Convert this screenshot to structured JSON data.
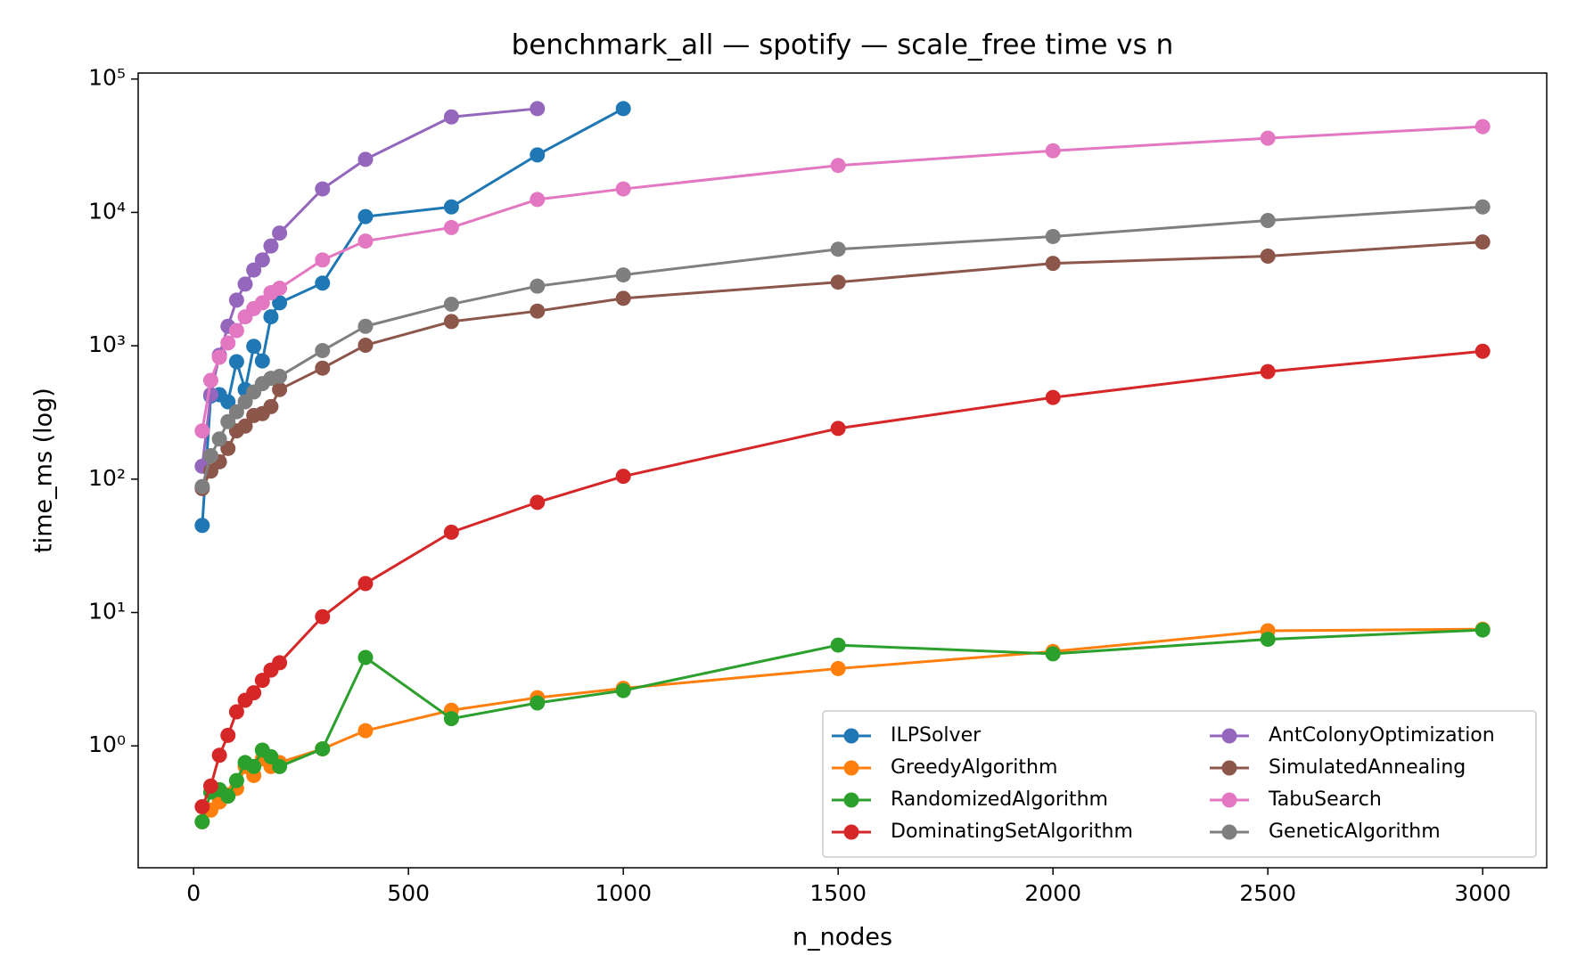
{
  "chart_data": {
    "type": "line",
    "title": "benchmark_all — spotify — scale_free time vs n",
    "x_label": "n_nodes",
    "y_label": "time_ms (log)",
    "log_y": true,
    "legend": "lower right",
    "x": [
      20,
      40,
      60,
      80,
      100,
      120,
      140,
      160,
      180,
      200,
      300,
      400,
      600,
      800,
      1000,
      1500,
      2000,
      2500,
      3000
    ],
    "xlim": [
      -129,
      3149
    ],
    "xticks": [
      0,
      500,
      1000,
      1500,
      2000,
      2500,
      3000
    ],
    "ylim": [
      0.122,
      110900
    ],
    "yticks": [
      {
        "value": 1,
        "label": "10⁰"
      },
      {
        "value": 10,
        "label": "10¹"
      },
      {
        "value": 100,
        "label": "10²"
      },
      {
        "value": 1000,
        "label": "10³"
      },
      {
        "value": 10000,
        "label": "10⁴"
      },
      {
        "value": 100000,
        "label": "10⁵"
      }
    ],
    "series": [
      {
        "name": "ILPSolver",
        "color": "#1f77b4",
        "values": [
          45,
          420,
          430,
          380,
          760,
          470,
          990,
          770,
          1650,
          2100,
          2950,
          9300,
          11000,
          27000,
          60000,
          null,
          null,
          null,
          null
        ]
      },
      {
        "name": "GreedyAlgorithm",
        "color": "#ff7f0e",
        "values": [
          0.27,
          0.33,
          0.38,
          0.43,
          0.48,
          0.7,
          0.6,
          0.8,
          0.7,
          0.75,
          0.95,
          1.3,
          1.85,
          2.3,
          2.7,
          3.8,
          5.1,
          7.3,
          7.5
        ]
      },
      {
        "name": "RandomizedAlgorithm",
        "color": "#2ca02c",
        "values": [
          0.27,
          0.45,
          0.47,
          0.42,
          0.55,
          0.75,
          0.7,
          0.93,
          0.83,
          0.7,
          0.95,
          4.6,
          1.6,
          2.1,
          2.6,
          5.7,
          4.9,
          6.3,
          7.4
        ]
      },
      {
        "name": "DominatingSetAlgorithm",
        "color": "#d62728",
        "values": [
          0.35,
          0.5,
          0.85,
          1.2,
          1.8,
          2.2,
          2.5,
          3.1,
          3.7,
          4.2,
          9.3,
          16.5,
          40,
          67,
          105,
          240,
          410,
          640,
          910
        ]
      },
      {
        "name": "AntColonyOptimization",
        "color": "#9467bd",
        "values": [
          125,
          430,
          850,
          1400,
          2200,
          2900,
          3700,
          4400,
          5600,
          7000,
          15000,
          25000,
          52000,
          60000,
          null,
          null,
          null,
          null,
          null
        ]
      },
      {
        "name": "SimulatedAnnealing",
        "color": "#8c564b",
        "values": [
          85,
          115,
          135,
          170,
          230,
          250,
          300,
          310,
          350,
          470,
          680,
          1010,
          1520,
          1820,
          2270,
          3000,
          4150,
          4700,
          6000
        ]
      },
      {
        "name": "TabuSearch",
        "color": "#e377c2",
        "values": [
          230,
          550,
          820,
          1050,
          1300,
          1650,
          1900,
          2100,
          2500,
          2700,
          4400,
          6100,
          7700,
          12500,
          15000,
          22500,
          29000,
          36000,
          44000
        ]
      },
      {
        "name": "GeneticAlgorithm",
        "color": "#7f7f7f",
        "values": [
          88,
          150,
          200,
          270,
          320,
          380,
          450,
          520,
          570,
          590,
          920,
          1400,
          2050,
          2800,
          3400,
          5300,
          6600,
          8700,
          11000
        ]
      }
    ]
  }
}
